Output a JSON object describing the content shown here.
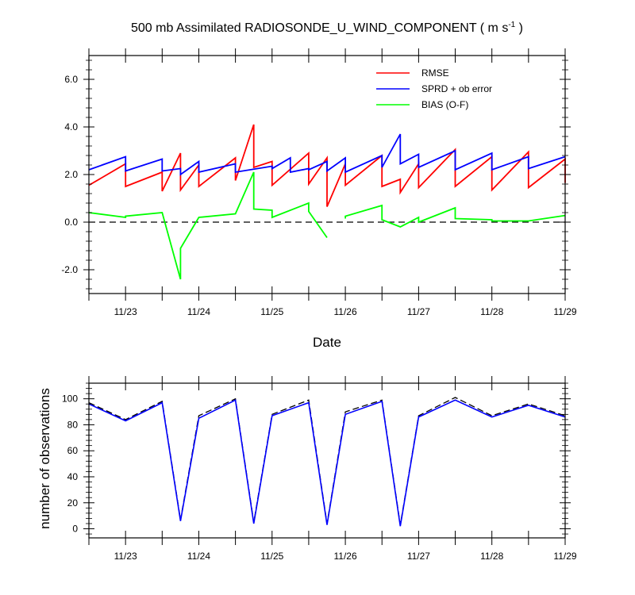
{
  "chart_data": [
    {
      "type": "line",
      "title": "500 mb Assimilated RADIOSONDE_U_WIND_COMPONENT ( m s",
      "title_sup": "-1",
      "title_tail": " )",
      "xlabel": "Date",
      "ylabel": "",
      "xlim": [
        0,
        6.5
      ],
      "ylim": [
        -3.0,
        7.0
      ],
      "x_ticks": [
        0.5,
        1.5,
        2.5,
        3.5,
        4.5,
        5.5,
        6.5
      ],
      "x_tick_labels": [
        "11/23",
        "11/24",
        "11/25",
        "11/26",
        "11/27",
        "11/28",
        "11/29"
      ],
      "y_ticks": [
        -2.0,
        0.0,
        2.0,
        4.0,
        6.0
      ],
      "y_tick_labels": [
        "-2.0",
        "0.0",
        "2.0",
        "4.0",
        "6.0"
      ],
      "zero_line": true,
      "legend": "top-right",
      "series": [
        {
          "name": "RMSE",
          "color": "#ff0000",
          "segments": [
            [
              [
                0,
                1.55
              ],
              [
                0.5,
                2.45
              ],
              [
                0.5,
                1.5
              ],
              [
                1.0,
                2.1
              ],
              [
                1.0,
                1.3
              ],
              [
                1.25,
                2.9
              ],
              [
                1.25,
                1.35
              ],
              [
                1.5,
                2.4
              ],
              [
                1.5,
                1.5
              ],
              [
                2.0,
                2.7
              ],
              [
                2.0,
                1.75
              ],
              [
                2.25,
                4.1
              ],
              [
                2.25,
                2.3
              ],
              [
                2.5,
                2.55
              ],
              [
                2.5,
                1.55
              ],
              [
                3.0,
                2.9
              ],
              [
                3.0,
                1.6
              ],
              [
                3.25,
                2.7
              ],
              [
                3.25,
                0.65
              ],
              [
                3.5,
                2.45
              ],
              [
                3.5,
                1.55
              ],
              [
                4.0,
                2.8
              ],
              [
                4.0,
                1.5
              ],
              [
                4.25,
                1.8
              ],
              [
                4.25,
                1.25
              ],
              [
                4.5,
                2.45
              ],
              [
                4.5,
                1.45
              ],
              [
                5.0,
                3.05
              ],
              [
                5.0,
                1.5
              ],
              [
                5.5,
                2.75
              ],
              [
                5.5,
                1.35
              ],
              [
                6.0,
                2.95
              ],
              [
                6.0,
                1.45
              ],
              [
                6.5,
                2.65
              ],
              [
                6.5,
                1.65
              ]
            ]
          ]
        },
        {
          "name": "SPRD + ob error",
          "color": "#0000ff",
          "segments": [
            [
              [
                0,
                2.2
              ],
              [
                0.5,
                2.75
              ],
              [
                0.5,
                2.15
              ],
              [
                1.0,
                2.65
              ],
              [
                1.0,
                2.15
              ],
              [
                1.25,
                2.25
              ],
              [
                1.25,
                2.0
              ],
              [
                1.5,
                2.55
              ],
              [
                1.5,
                2.1
              ],
              [
                2.0,
                2.45
              ],
              [
                2.0,
                2.1
              ],
              [
                2.5,
                2.35
              ],
              [
                2.5,
                2.25
              ],
              [
                2.75,
                2.7
              ],
              [
                2.75,
                2.1
              ],
              [
                3.0,
                2.25
              ],
              [
                3.0,
                2.2
              ],
              [
                3.25,
                2.55
              ],
              [
                3.25,
                2.15
              ],
              [
                3.5,
                2.7
              ],
              [
                3.5,
                2.1
              ],
              [
                4.0,
                2.8
              ],
              [
                4.0,
                2.3
              ],
              [
                4.25,
                3.7
              ],
              [
                4.25,
                2.45
              ],
              [
                4.5,
                2.85
              ],
              [
                4.5,
                2.3
              ],
              [
                5.0,
                3.0
              ],
              [
                5.0,
                2.2
              ],
              [
                5.5,
                2.9
              ],
              [
                5.5,
                2.2
              ],
              [
                6.0,
                2.75
              ],
              [
                6.0,
                2.25
              ],
              [
                6.5,
                2.75
              ]
            ]
          ]
        },
        {
          "name": "BIAS (O-F)",
          "color": "#00ff00",
          "segments": [
            [
              [
                0,
                0.4
              ],
              [
                0.5,
                0.2
              ],
              [
                0.5,
                0.25
              ],
              [
                1.0,
                0.4
              ],
              [
                1.25,
                -2.4
              ],
              [
                1.25,
                -1.1
              ],
              [
                1.5,
                0.2
              ],
              [
                2.0,
                0.35
              ],
              [
                2.25,
                2.1
              ],
              [
                2.25,
                0.55
              ],
              [
                2.5,
                0.5
              ],
              [
                2.5,
                0.2
              ],
              [
                3.0,
                0.8
              ],
              [
                3.0,
                0.45
              ],
              [
                3.25,
                -0.65
              ]
            ],
            [
              [
                3.5,
                0.15
              ],
              [
                3.5,
                0.25
              ],
              [
                4.0,
                0.7
              ],
              [
                4.0,
                0.1
              ],
              [
                4.25,
                -0.2
              ],
              [
                4.5,
                0.2
              ],
              [
                4.5,
                0.0
              ],
              [
                5.0,
                0.6
              ],
              [
                5.0,
                0.15
              ],
              [
                5.5,
                0.1
              ],
              [
                5.5,
                0.05
              ],
              [
                6.0,
                0.05
              ],
              [
                6.5,
                0.28
              ]
            ]
          ]
        }
      ]
    },
    {
      "type": "line",
      "title": "",
      "xlabel": "",
      "ylabel": "number of observations",
      "xlim": [
        0,
        6.5
      ],
      "ylim": [
        -7,
        112
      ],
      "x_ticks": [
        0.5,
        1.5,
        2.5,
        3.5,
        4.5,
        5.5,
        6.5
      ],
      "x_tick_labels": [
        "11/23",
        "11/24",
        "11/25",
        "11/26",
        "11/27",
        "11/28",
        "11/29"
      ],
      "y_ticks": [
        0,
        20,
        40,
        60,
        80,
        100
      ],
      "y_tick_labels": [
        "0",
        "20",
        "40",
        "60",
        "80",
        "100"
      ],
      "series": [
        {
          "color": "#000000",
          "dash": true,
          "x": [
            0,
            0.5,
            1.0,
            1.25,
            1.5,
            2.0,
            2.25,
            2.5,
            3.0,
            3.25,
            3.5,
            4.0,
            4.25,
            4.5,
            5.0,
            5.5,
            6.0,
            6.5
          ],
          "y": [
            97,
            84,
            98,
            7,
            87,
            100,
            5,
            88,
            99,
            4,
            90,
            99,
            3,
            87,
            101,
            87,
            96,
            87
          ]
        },
        {
          "color": "#0000ff",
          "dash": false,
          "x": [
            0,
            0.5,
            1.0,
            1.25,
            1.5,
            2.0,
            2.25,
            2.5,
            3.0,
            3.25,
            3.5,
            4.0,
            4.25,
            4.5,
            5.0,
            5.5,
            6.0,
            6.5
          ],
          "y": [
            96,
            83,
            97,
            6,
            85,
            99,
            4,
            87,
            97,
            3,
            88,
            98,
            2,
            86,
            99,
            86,
            95,
            86
          ]
        }
      ]
    }
  ]
}
